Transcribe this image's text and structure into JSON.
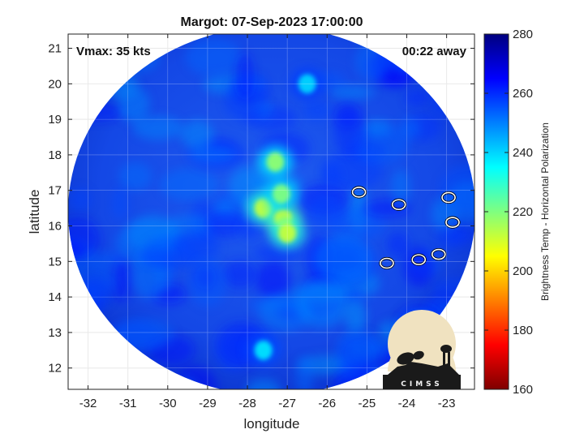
{
  "chart_data": {
    "type": "heatmap",
    "title": "Margot: 07-Sep-2023 17:00:00",
    "xlabel": "longitude",
    "ylabel": "latitude",
    "xlim": [
      -32.5,
      -22.3
    ],
    "ylim": [
      11.4,
      21.4
    ],
    "x_ticks": [
      "-32",
      "-31",
      "-30",
      "-29",
      "-28",
      "-27",
      "-26",
      "-25",
      "-24",
      "-23"
    ],
    "y_ticks": [
      "12",
      "13",
      "14",
      "15",
      "16",
      "17",
      "18",
      "19",
      "20",
      "21"
    ],
    "grid": true,
    "annotations": {
      "vmax": "Vmax: 35 kts",
      "time_away": "00:22 away"
    },
    "colorbar": {
      "label": "Brightness Temp - Horizontal Polarization",
      "range": [
        160,
        280
      ],
      "ticks": [
        "160",
        "180",
        "200",
        "220",
        "240",
        "260",
        "280"
      ],
      "colors": [
        "#7f0000",
        "#ff0000",
        "#ffff00",
        "#00ffff",
        "#0000ff",
        "#00007f"
      ]
    },
    "background_temp": 255,
    "warm_features": [
      {
        "lon": -27.3,
        "lat": 17.8,
        "temp": 218
      },
      {
        "lon": -27.6,
        "lat": 16.5,
        "temp": 212
      },
      {
        "lon": -27.1,
        "lat": 16.2,
        "temp": 208
      },
      {
        "lon": -27.15,
        "lat": 16.9,
        "temp": 220
      },
      {
        "lon": -27.0,
        "lat": 15.8,
        "temp": 212
      },
      {
        "lon": -26.5,
        "lat": 20.0,
        "temp": 240
      },
      {
        "lon": -27.6,
        "lat": 12.5,
        "temp": 238
      }
    ],
    "contours": [
      {
        "lon": -25.2,
        "lat": 16.95
      },
      {
        "lon": -24.2,
        "lat": 16.6
      },
      {
        "lon": -22.95,
        "lat": 16.8
      },
      {
        "lon": -22.85,
        "lat": 16.1
      },
      {
        "lon": -24.5,
        "lat": 14.95
      },
      {
        "lon": -23.7,
        "lat": 15.05
      },
      {
        "lon": -23.2,
        "lat": 15.2
      }
    ]
  },
  "logo": {
    "text": "CIMSS"
  }
}
